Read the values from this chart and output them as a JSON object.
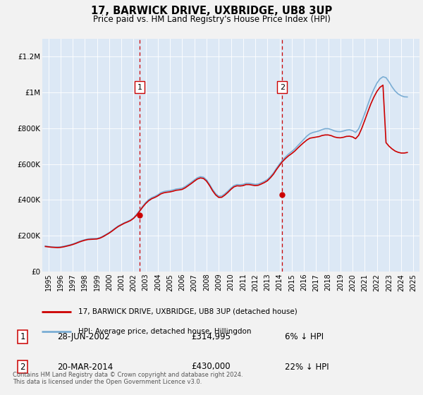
{
  "title": "17, BARWICK DRIVE, UXBRIDGE, UB8 3UP",
  "subtitle": "Price paid vs. HM Land Registry's House Price Index (HPI)",
  "background_color": "#f2f2f2",
  "plot_bg_color": "#dce8f5",
  "legend_label_red": "17, BARWICK DRIVE, UXBRIDGE, UB8 3UP (detached house)",
  "legend_label_blue": "HPI: Average price, detached house, Hillingdon",
  "footer": "Contains HM Land Registry data © Crown copyright and database right 2024.\nThis data is licensed under the Open Government Licence v3.0.",
  "point1_label": "1",
  "point1_date": "28-JUN-2002",
  "point1_price": "£314,995",
  "point1_pct": "6% ↓ HPI",
  "point1_x": 2002.49,
  "point1_y": 314995,
  "point2_label": "2",
  "point2_date": "20-MAR-2014",
  "point2_price": "£430,000",
  "point2_pct": "22% ↓ HPI",
  "point2_x": 2014.22,
  "point2_y": 430000,
  "ylim": [
    0,
    1300000
  ],
  "xlim_start": 1994.5,
  "xlim_end": 2025.5,
  "yticks": [
    0,
    200000,
    400000,
    600000,
    800000,
    1000000,
    1200000
  ],
  "ytick_labels": [
    "£0",
    "£200K",
    "£400K",
    "£600K",
    "£800K",
    "£1M",
    "£1.2M"
  ],
  "xticks": [
    1995,
    1996,
    1997,
    1998,
    1999,
    2000,
    2001,
    2002,
    2003,
    2004,
    2005,
    2006,
    2007,
    2008,
    2009,
    2010,
    2011,
    2012,
    2013,
    2014,
    2015,
    2016,
    2017,
    2018,
    2019,
    2020,
    2021,
    2022,
    2023,
    2024,
    2025
  ],
  "red_color": "#cc0000",
  "blue_color": "#7aadd4",
  "hpi_data": [
    [
      1994.75,
      143000
    ],
    [
      1995.0,
      140000
    ],
    [
      1995.25,
      138000
    ],
    [
      1995.5,
      137000
    ],
    [
      1995.75,
      137000
    ],
    [
      1996.0,
      138000
    ],
    [
      1996.25,
      141000
    ],
    [
      1996.5,
      145000
    ],
    [
      1996.75,
      149000
    ],
    [
      1997.0,
      154000
    ],
    [
      1997.25,
      160000
    ],
    [
      1997.5,
      167000
    ],
    [
      1997.75,
      173000
    ],
    [
      1998.0,
      178000
    ],
    [
      1998.25,
      182000
    ],
    [
      1998.5,
      184000
    ],
    [
      1998.75,
      184000
    ],
    [
      1999.0,
      185000
    ],
    [
      1999.25,
      190000
    ],
    [
      1999.5,
      198000
    ],
    [
      1999.75,
      208000
    ],
    [
      2000.0,
      218000
    ],
    [
      2000.25,
      230000
    ],
    [
      2000.5,
      243000
    ],
    [
      2000.75,
      255000
    ],
    [
      2001.0,
      264000
    ],
    [
      2001.25,
      273000
    ],
    [
      2001.5,
      280000
    ],
    [
      2001.75,
      288000
    ],
    [
      2002.0,
      300000
    ],
    [
      2002.25,
      319000
    ],
    [
      2002.5,
      341000
    ],
    [
      2002.75,
      365000
    ],
    [
      2003.0,
      386000
    ],
    [
      2003.25,
      402000
    ],
    [
      2003.5,
      413000
    ],
    [
      2003.75,
      420000
    ],
    [
      2004.0,
      429000
    ],
    [
      2004.25,
      441000
    ],
    [
      2004.5,
      447000
    ],
    [
      2004.75,
      450000
    ],
    [
      2005.0,
      452000
    ],
    [
      2005.25,
      456000
    ],
    [
      2005.5,
      461000
    ],
    [
      2005.75,
      463000
    ],
    [
      2006.0,
      466000
    ],
    [
      2006.25,
      475000
    ],
    [
      2006.5,
      487000
    ],
    [
      2006.75,
      499000
    ],
    [
      2007.0,
      512000
    ],
    [
      2007.25,
      524000
    ],
    [
      2007.5,
      530000
    ],
    [
      2007.75,
      527000
    ],
    [
      2008.0,
      512000
    ],
    [
      2008.25,
      487000
    ],
    [
      2008.5,
      458000
    ],
    [
      2008.75,
      435000
    ],
    [
      2009.0,
      421000
    ],
    [
      2009.25,
      422000
    ],
    [
      2009.5,
      434000
    ],
    [
      2009.75,
      449000
    ],
    [
      2010.0,
      466000
    ],
    [
      2010.25,
      480000
    ],
    [
      2010.5,
      486000
    ],
    [
      2010.75,
      485000
    ],
    [
      2011.0,
      487000
    ],
    [
      2011.25,
      493000
    ],
    [
      2011.5,
      493000
    ],
    [
      2011.75,
      490000
    ],
    [
      2012.0,
      487000
    ],
    [
      2012.25,
      489000
    ],
    [
      2012.5,
      496000
    ],
    [
      2012.75,
      504000
    ],
    [
      2013.0,
      514000
    ],
    [
      2013.25,
      531000
    ],
    [
      2013.5,
      551000
    ],
    [
      2013.75,
      577000
    ],
    [
      2014.0,
      601000
    ],
    [
      2014.25,
      623000
    ],
    [
      2014.5,
      641000
    ],
    [
      2014.75,
      657000
    ],
    [
      2015.0,
      670000
    ],
    [
      2015.25,
      685000
    ],
    [
      2015.5,
      703000
    ],
    [
      2015.75,
      721000
    ],
    [
      2016.0,
      739000
    ],
    [
      2016.25,
      757000
    ],
    [
      2016.5,
      770000
    ],
    [
      2016.75,
      777000
    ],
    [
      2017.0,
      781000
    ],
    [
      2017.25,
      786000
    ],
    [
      2017.5,
      793000
    ],
    [
      2017.75,
      798000
    ],
    [
      2018.0,
      798000
    ],
    [
      2018.25,
      793000
    ],
    [
      2018.5,
      786000
    ],
    [
      2018.75,
      782000
    ],
    [
      2019.0,
      781000
    ],
    [
      2019.25,
      785000
    ],
    [
      2019.5,
      790000
    ],
    [
      2019.75,
      792000
    ],
    [
      2020.0,
      787000
    ],
    [
      2020.25,
      777000
    ],
    [
      2020.5,
      797000
    ],
    [
      2020.75,
      837000
    ],
    [
      2021.0,
      882000
    ],
    [
      2021.25,
      931000
    ],
    [
      2021.5,
      978000
    ],
    [
      2021.75,
      1018000
    ],
    [
      2022.0,
      1052000
    ],
    [
      2022.25,
      1076000
    ],
    [
      2022.5,
      1088000
    ],
    [
      2022.75,
      1083000
    ],
    [
      2023.0,
      1059000
    ],
    [
      2023.25,
      1031000
    ],
    [
      2023.5,
      1008000
    ],
    [
      2023.75,
      992000
    ],
    [
      2024.0,
      982000
    ],
    [
      2024.25,
      976000
    ],
    [
      2024.5,
      975000
    ]
  ],
  "price_paid_data": [
    [
      1994.75,
      140000
    ],
    [
      1995.0,
      138000
    ],
    [
      1995.25,
      136000
    ],
    [
      1995.5,
      135000
    ],
    [
      1995.75,
      134000
    ],
    [
      1996.0,
      135000
    ],
    [
      1996.25,
      138000
    ],
    [
      1996.5,
      142000
    ],
    [
      1996.75,
      146000
    ],
    [
      1997.0,
      151000
    ],
    [
      1997.25,
      157000
    ],
    [
      1997.5,
      164000
    ],
    [
      1997.75,
      170000
    ],
    [
      1998.0,
      175000
    ],
    [
      1998.25,
      179000
    ],
    [
      1998.5,
      180000
    ],
    [
      1998.75,
      181000
    ],
    [
      1999.0,
      182000
    ],
    [
      1999.25,
      187000
    ],
    [
      1999.5,
      195000
    ],
    [
      1999.75,
      205000
    ],
    [
      2000.0,
      215000
    ],
    [
      2000.25,
      227000
    ],
    [
      2000.5,
      240000
    ],
    [
      2000.75,
      252000
    ],
    [
      2001.0,
      261000
    ],
    [
      2001.25,
      270000
    ],
    [
      2001.5,
      277000
    ],
    [
      2001.75,
      285000
    ],
    [
      2002.0,
      297000
    ],
    [
      2002.25,
      315000
    ],
    [
      2002.5,
      337000
    ],
    [
      2002.75,
      360000
    ],
    [
      2003.0,
      380000
    ],
    [
      2003.25,
      396000
    ],
    [
      2003.5,
      407000
    ],
    [
      2003.75,
      414000
    ],
    [
      2004.0,
      423000
    ],
    [
      2004.25,
      434000
    ],
    [
      2004.5,
      440000
    ],
    [
      2004.75,
      443000
    ],
    [
      2005.0,
      445000
    ],
    [
      2005.25,
      449000
    ],
    [
      2005.5,
      454000
    ],
    [
      2005.75,
      456000
    ],
    [
      2006.0,
      459000
    ],
    [
      2006.25,
      468000
    ],
    [
      2006.5,
      480000
    ],
    [
      2006.75,
      492000
    ],
    [
      2007.0,
      505000
    ],
    [
      2007.25,
      517000
    ],
    [
      2007.5,
      523000
    ],
    [
      2007.75,
      520000
    ],
    [
      2008.0,
      505000
    ],
    [
      2008.25,
      480000
    ],
    [
      2008.5,
      451000
    ],
    [
      2008.75,
      428000
    ],
    [
      2009.0,
      414000
    ],
    [
      2009.25,
      415000
    ],
    [
      2009.5,
      427000
    ],
    [
      2009.75,
      442000
    ],
    [
      2010.0,
      459000
    ],
    [
      2010.25,
      473000
    ],
    [
      2010.5,
      479000
    ],
    [
      2010.75,
      478000
    ],
    [
      2011.0,
      480000
    ],
    [
      2011.25,
      486000
    ],
    [
      2011.5,
      486000
    ],
    [
      2011.75,
      483000
    ],
    [
      2012.0,
      480000
    ],
    [
      2012.25,
      482000
    ],
    [
      2012.5,
      489000
    ],
    [
      2012.75,
      497000
    ],
    [
      2013.0,
      507000
    ],
    [
      2013.25,
      524000
    ],
    [
      2013.5,
      544000
    ],
    [
      2013.75,
      570000
    ],
    [
      2014.0,
      593000
    ],
    [
      2014.25,
      615000
    ],
    [
      2014.5,
      632000
    ],
    [
      2014.75,
      647000
    ],
    [
      2015.0,
      659000
    ],
    [
      2015.25,
      673000
    ],
    [
      2015.5,
      690000
    ],
    [
      2015.75,
      706000
    ],
    [
      2016.0,
      721000
    ],
    [
      2016.25,
      735000
    ],
    [
      2016.5,
      745000
    ],
    [
      2016.75,
      748000
    ],
    [
      2017.0,
      751000
    ],
    [
      2017.25,
      754000
    ],
    [
      2017.5,
      760000
    ],
    [
      2017.75,
      763000
    ],
    [
      2018.0,
      763000
    ],
    [
      2018.25,
      759000
    ],
    [
      2018.5,
      752000
    ],
    [
      2018.75,
      748000
    ],
    [
      2019.0,
      747000
    ],
    [
      2019.25,
      750000
    ],
    [
      2019.5,
      755000
    ],
    [
      2019.75,
      756000
    ],
    [
      2020.0,
      752000
    ],
    [
      2020.25,
      742000
    ],
    [
      2020.5,
      761000
    ],
    [
      2020.75,
      799000
    ],
    [
      2021.0,
      844000
    ],
    [
      2021.25,
      891000
    ],
    [
      2021.5,
      936000
    ],
    [
      2021.75,
      974000
    ],
    [
      2022.0,
      1006000
    ],
    [
      2022.25,
      1029000
    ],
    [
      2022.5,
      1041000
    ],
    [
      2022.75,
      720000
    ],
    [
      2023.0,
      700000
    ],
    [
      2023.25,
      685000
    ],
    [
      2023.5,
      673000
    ],
    [
      2023.75,
      666000
    ],
    [
      2024.0,
      662000
    ],
    [
      2024.25,
      662000
    ],
    [
      2024.5,
      665000
    ]
  ]
}
